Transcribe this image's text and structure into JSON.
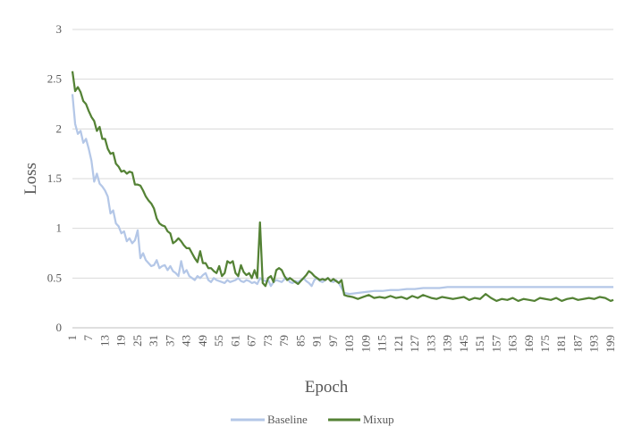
{
  "chart_data": {
    "type": "line",
    "title": "",
    "xlabel": "Epoch",
    "ylabel": "Loss",
    "ylim": [
      0,
      3
    ],
    "yticks": [
      "0",
      "0.5",
      "1",
      "1.5",
      "2",
      "2.5",
      "3"
    ],
    "xlim": [
      1,
      200
    ],
    "xticks": [
      1,
      7,
      13,
      19,
      25,
      31,
      37,
      43,
      49,
      55,
      61,
      67,
      73,
      79,
      85,
      91,
      97,
      103,
      109,
      115,
      121,
      127,
      133,
      139,
      145,
      151,
      157,
      163,
      169,
      175,
      181,
      187,
      193,
      199
    ],
    "grid": true,
    "legend_position": "bottom",
    "series": [
      {
        "name": "Baseline",
        "color": "#b4c7e7",
        "points": [
          [
            1,
            2.35
          ],
          [
            2,
            2.05
          ],
          [
            3,
            1.95
          ],
          [
            4,
            1.98
          ],
          [
            5,
            1.86
          ],
          [
            6,
            1.9
          ],
          [
            7,
            1.8
          ],
          [
            8,
            1.68
          ],
          [
            9,
            1.47
          ],
          [
            10,
            1.55
          ],
          [
            11,
            1.45
          ],
          [
            12,
            1.42
          ],
          [
            13,
            1.38
          ],
          [
            14,
            1.32
          ],
          [
            15,
            1.15
          ],
          [
            16,
            1.18
          ],
          [
            17,
            1.05
          ],
          [
            18,
            1.02
          ],
          [
            19,
            0.95
          ],
          [
            20,
            0.97
          ],
          [
            21,
            0.87
          ],
          [
            22,
            0.9
          ],
          [
            23,
            0.85
          ],
          [
            24,
            0.88
          ],
          [
            25,
            0.98
          ],
          [
            26,
            0.7
          ],
          [
            27,
            0.75
          ],
          [
            28,
            0.68
          ],
          [
            29,
            0.65
          ],
          [
            30,
            0.62
          ],
          [
            31,
            0.63
          ],
          [
            32,
            0.68
          ],
          [
            33,
            0.6
          ],
          [
            34,
            0.62
          ],
          [
            35,
            0.63
          ],
          [
            36,
            0.58
          ],
          [
            37,
            0.62
          ],
          [
            38,
            0.57
          ],
          [
            39,
            0.55
          ],
          [
            40,
            0.52
          ],
          [
            41,
            0.67
          ],
          [
            42,
            0.55
          ],
          [
            43,
            0.58
          ],
          [
            44,
            0.52
          ],
          [
            45,
            0.5
          ],
          [
            46,
            0.48
          ],
          [
            47,
            0.52
          ],
          [
            48,
            0.5
          ],
          [
            49,
            0.53
          ],
          [
            50,
            0.55
          ],
          [
            51,
            0.48
          ],
          [
            52,
            0.46
          ],
          [
            53,
            0.5
          ],
          [
            54,
            0.48
          ],
          [
            55,
            0.47
          ],
          [
            56,
            0.46
          ],
          [
            57,
            0.45
          ],
          [
            58,
            0.48
          ],
          [
            59,
            0.46
          ],
          [
            60,
            0.47
          ],
          [
            61,
            0.48
          ],
          [
            62,
            0.5
          ],
          [
            63,
            0.47
          ],
          [
            64,
            0.46
          ],
          [
            65,
            0.48
          ],
          [
            66,
            0.47
          ],
          [
            67,
            0.45
          ],
          [
            68,
            0.46
          ],
          [
            69,
            0.44
          ],
          [
            70,
            0.5
          ],
          [
            71,
            0.48
          ],
          [
            72,
            0.47
          ],
          [
            73,
            0.48
          ],
          [
            74,
            0.42
          ],
          [
            75,
            0.46
          ],
          [
            76,
            0.48
          ],
          [
            77,
            0.47
          ],
          [
            78,
            0.46
          ],
          [
            79,
            0.49
          ],
          [
            80,
            0.5
          ],
          [
            81,
            0.46
          ],
          [
            82,
            0.45
          ],
          [
            83,
            0.47
          ],
          [
            84,
            0.46
          ],
          [
            85,
            0.48
          ],
          [
            86,
            0.5
          ],
          [
            87,
            0.47
          ],
          [
            88,
            0.45
          ],
          [
            89,
            0.42
          ],
          [
            90,
            0.48
          ],
          [
            91,
            0.5
          ],
          [
            92,
            0.47
          ],
          [
            93,
            0.46
          ],
          [
            94,
            0.48
          ],
          [
            95,
            0.5
          ],
          [
            96,
            0.47
          ],
          [
            97,
            0.46
          ],
          [
            98,
            0.48
          ],
          [
            99,
            0.45
          ],
          [
            100,
            0.4
          ],
          [
            101,
            0.35
          ],
          [
            103,
            0.34
          ],
          [
            106,
            0.35
          ],
          [
            109,
            0.36
          ],
          [
            112,
            0.37
          ],
          [
            115,
            0.37
          ],
          [
            118,
            0.38
          ],
          [
            121,
            0.38
          ],
          [
            124,
            0.39
          ],
          [
            127,
            0.39
          ],
          [
            130,
            0.4
          ],
          [
            133,
            0.4
          ],
          [
            136,
            0.4
          ],
          [
            139,
            0.41
          ],
          [
            142,
            0.41
          ],
          [
            145,
            0.41
          ],
          [
            148,
            0.41
          ],
          [
            151,
            0.41
          ],
          [
            154,
            0.41
          ],
          [
            157,
            0.41
          ],
          [
            160,
            0.41
          ],
          [
            163,
            0.41
          ],
          [
            166,
            0.41
          ],
          [
            169,
            0.41
          ],
          [
            172,
            0.41
          ],
          [
            175,
            0.41
          ],
          [
            178,
            0.41
          ],
          [
            181,
            0.41
          ],
          [
            184,
            0.41
          ],
          [
            187,
            0.41
          ],
          [
            190,
            0.41
          ],
          [
            193,
            0.41
          ],
          [
            196,
            0.41
          ],
          [
            199,
            0.41
          ],
          [
            200,
            0.41
          ]
        ]
      },
      {
        "name": "Mixup",
        "color": "#548235",
        "points": [
          [
            1,
            2.58
          ],
          [
            2,
            2.38
          ],
          [
            3,
            2.42
          ],
          [
            4,
            2.37
          ],
          [
            5,
            2.28
          ],
          [
            6,
            2.25
          ],
          [
            7,
            2.18
          ],
          [
            8,
            2.12
          ],
          [
            9,
            2.08
          ],
          [
            10,
            1.98
          ],
          [
            11,
            2.02
          ],
          [
            12,
            1.9
          ],
          [
            13,
            1.9
          ],
          [
            14,
            1.8
          ],
          [
            15,
            1.75
          ],
          [
            16,
            1.76
          ],
          [
            17,
            1.65
          ],
          [
            18,
            1.62
          ],
          [
            19,
            1.57
          ],
          [
            20,
            1.58
          ],
          [
            21,
            1.55
          ],
          [
            22,
            1.57
          ],
          [
            23,
            1.56
          ],
          [
            24,
            1.44
          ],
          [
            25,
            1.44
          ],
          [
            26,
            1.43
          ],
          [
            27,
            1.38
          ],
          [
            28,
            1.32
          ],
          [
            29,
            1.28
          ],
          [
            30,
            1.25
          ],
          [
            31,
            1.2
          ],
          [
            32,
            1.1
          ],
          [
            33,
            1.05
          ],
          [
            34,
            1.03
          ],
          [
            35,
            1.02
          ],
          [
            36,
            0.97
          ],
          [
            37,
            0.95
          ],
          [
            38,
            0.85
          ],
          [
            39,
            0.87
          ],
          [
            40,
            0.9
          ],
          [
            41,
            0.87
          ],
          [
            42,
            0.83
          ],
          [
            43,
            0.8
          ],
          [
            44,
            0.8
          ],
          [
            45,
            0.75
          ],
          [
            46,
            0.7
          ],
          [
            47,
            0.66
          ],
          [
            48,
            0.77
          ],
          [
            49,
            0.65
          ],
          [
            50,
            0.65
          ],
          [
            51,
            0.6
          ],
          [
            52,
            0.6
          ],
          [
            53,
            0.57
          ],
          [
            54,
            0.55
          ],
          [
            55,
            0.62
          ],
          [
            56,
            0.52
          ],
          [
            57,
            0.55
          ],
          [
            58,
            0.67
          ],
          [
            59,
            0.65
          ],
          [
            60,
            0.67
          ],
          [
            61,
            0.55
          ],
          [
            62,
            0.52
          ],
          [
            63,
            0.63
          ],
          [
            64,
            0.56
          ],
          [
            65,
            0.53
          ],
          [
            66,
            0.55
          ],
          [
            67,
            0.5
          ],
          [
            68,
            0.58
          ],
          [
            69,
            0.5
          ],
          [
            70,
            1.06
          ],
          [
            71,
            0.45
          ],
          [
            72,
            0.42
          ],
          [
            73,
            0.5
          ],
          [
            74,
            0.52
          ],
          [
            75,
            0.46
          ],
          [
            76,
            0.58
          ],
          [
            77,
            0.6
          ],
          [
            78,
            0.58
          ],
          [
            79,
            0.52
          ],
          [
            80,
            0.48
          ],
          [
            81,
            0.5
          ],
          [
            82,
            0.48
          ],
          [
            83,
            0.46
          ],
          [
            84,
            0.44
          ],
          [
            85,
            0.47
          ],
          [
            86,
            0.5
          ],
          [
            87,
            0.53
          ],
          [
            88,
            0.57
          ],
          [
            89,
            0.55
          ],
          [
            90,
            0.52
          ],
          [
            91,
            0.5
          ],
          [
            92,
            0.48
          ],
          [
            93,
            0.49
          ],
          [
            94,
            0.48
          ],
          [
            95,
            0.5
          ],
          [
            96,
            0.47
          ],
          [
            97,
            0.49
          ],
          [
            98,
            0.47
          ],
          [
            99,
            0.45
          ],
          [
            100,
            0.48
          ],
          [
            101,
            0.33
          ],
          [
            102,
            0.32
          ],
          [
            104,
            0.31
          ],
          [
            106,
            0.29
          ],
          [
            108,
            0.31
          ],
          [
            110,
            0.33
          ],
          [
            112,
            0.3
          ],
          [
            114,
            0.31
          ],
          [
            116,
            0.3
          ],
          [
            118,
            0.32
          ],
          [
            120,
            0.3
          ],
          [
            122,
            0.31
          ],
          [
            124,
            0.29
          ],
          [
            126,
            0.32
          ],
          [
            128,
            0.3
          ],
          [
            130,
            0.33
          ],
          [
            131,
            0.32
          ],
          [
            133,
            0.3
          ],
          [
            135,
            0.29
          ],
          [
            137,
            0.31
          ],
          [
            139,
            0.3
          ],
          [
            141,
            0.29
          ],
          [
            143,
            0.3
          ],
          [
            145,
            0.31
          ],
          [
            147,
            0.28
          ],
          [
            149,
            0.3
          ],
          [
            151,
            0.29
          ],
          [
            153,
            0.34
          ],
          [
            155,
            0.3
          ],
          [
            157,
            0.27
          ],
          [
            159,
            0.29
          ],
          [
            161,
            0.28
          ],
          [
            163,
            0.3
          ],
          [
            165,
            0.27
          ],
          [
            167,
            0.29
          ],
          [
            169,
            0.28
          ],
          [
            171,
            0.27
          ],
          [
            173,
            0.3
          ],
          [
            175,
            0.29
          ],
          [
            177,
            0.28
          ],
          [
            179,
            0.3
          ],
          [
            181,
            0.27
          ],
          [
            183,
            0.29
          ],
          [
            185,
            0.3
          ],
          [
            187,
            0.28
          ],
          [
            189,
            0.29
          ],
          [
            191,
            0.3
          ],
          [
            193,
            0.29
          ],
          [
            195,
            0.31
          ],
          [
            197,
            0.3
          ],
          [
            199,
            0.27
          ],
          [
            200,
            0.28
          ]
        ]
      }
    ]
  }
}
